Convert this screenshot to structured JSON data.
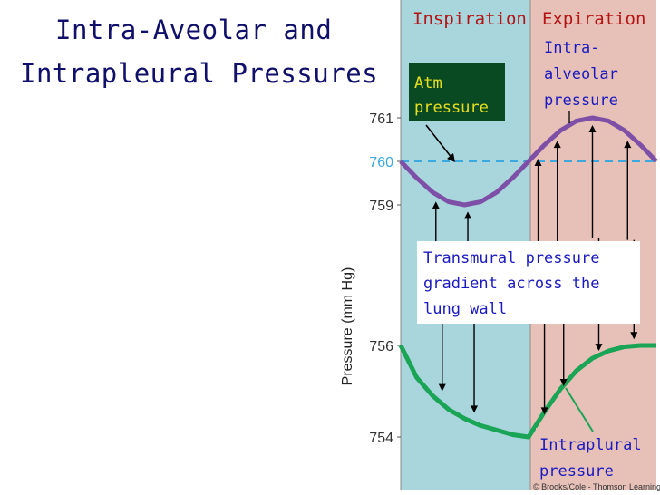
{
  "title": {
    "line1": "Intra-Aveolar and",
    "line2": "Intrapleural Pressures"
  },
  "phases": {
    "inspiration": "Inspiration",
    "expiration": "Expiration"
  },
  "annotations": {
    "atm_pressure": "Atm pressure",
    "intra_alveolar": "Intra- alveolar pressure",
    "transmural": "Transmural pressure gradient across the lung wall",
    "intrapleural": "Intraplural pressure"
  },
  "credit": "© Brooks/Cole - Thomson Learning",
  "colors": {
    "inspiration_bg": "#a9d5dc",
    "expiration_bg": "#e7c1b7",
    "alveolar_line": "#7e4fa6",
    "pleural_line": "#1aa455",
    "atm_line": "#3ba8e0",
    "title": "#10106a",
    "phase_label": "#b31313",
    "annotation_text": "#1a1ac0",
    "atm_box_bg": "#0a4a22",
    "atm_box_text": "#e8e020"
  },
  "chart_data": {
    "type": "line",
    "ylabel": "Pressure (mm Hg)",
    "y_ticks": [
      754,
      756,
      759,
      760,
      761
    ],
    "x_range": [
      0,
      4
    ],
    "phases": [
      {
        "name": "Inspiration",
        "x": [
          0,
          2
        ]
      },
      {
        "name": "Expiration",
        "x": [
          2,
          4
        ]
      }
    ],
    "series": [
      {
        "name": "Intra-alveolar pressure",
        "x": [
          0,
          0.25,
          0.5,
          0.75,
          1,
          1.25,
          1.5,
          1.75,
          2,
          2.25,
          2.5,
          2.75,
          3,
          3.25,
          3.5,
          3.75,
          4
        ],
        "values": [
          760,
          759.62,
          759.29,
          759.07,
          759,
          759.07,
          759.29,
          759.62,
          760,
          760.38,
          760.71,
          760.93,
          761,
          760.93,
          760.71,
          760.38,
          760
        ]
      },
      {
        "name": "Intraplural pressure",
        "x": [
          0,
          0.25,
          0.5,
          0.75,
          1,
          1.25,
          1.5,
          1.75,
          2,
          2.25,
          2.5,
          2.75,
          3,
          3.25,
          3.5,
          3.75,
          4
        ],
        "values": [
          756,
          755.3,
          754.9,
          754.6,
          754.4,
          754.25,
          754.15,
          754.05,
          754,
          754.55,
          755.05,
          755.45,
          755.72,
          755.88,
          755.97,
          756,
          756
        ]
      },
      {
        "name": "Atm pressure",
        "x": [
          0,
          4
        ],
        "values": [
          760,
          760
        ]
      }
    ]
  }
}
